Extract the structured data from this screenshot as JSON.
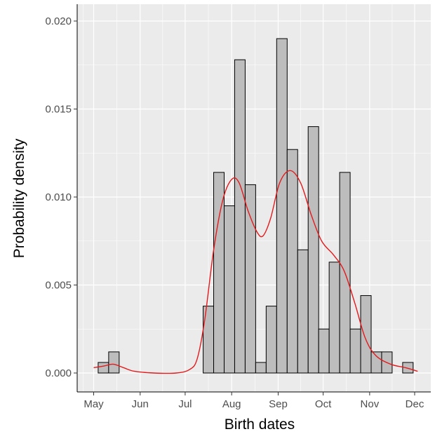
{
  "chart_data": {
    "type": "histogram",
    "xlabel": "Birth dates",
    "ylabel": "Probability density",
    "x_ticks": [
      "May",
      "Jun",
      "Jul",
      "Aug",
      "Sep",
      "Oct",
      "Nov",
      "Dec"
    ],
    "y_ticks": [
      "0.000",
      "0.005",
      "0.010",
      "0.015",
      "0.020"
    ],
    "ylim": [
      0,
      0.0205
    ],
    "grid": true,
    "bin_width_days": 7,
    "bins": [
      {
        "start": "2000-05-04",
        "density": 0.0006
      },
      {
        "start": "2000-05-11",
        "density": 0.0012
      },
      {
        "start": "2000-07-13",
        "density": 0.0038
      },
      {
        "start": "2000-07-20",
        "density": 0.0114
      },
      {
        "start": "2000-07-27",
        "density": 0.0095
      },
      {
        "start": "2000-08-03",
        "density": 0.0178
      },
      {
        "start": "2000-08-10",
        "density": 0.0107
      },
      {
        "start": "2000-08-17",
        "density": 0.0006
      },
      {
        "start": "2000-08-24",
        "density": 0.0038
      },
      {
        "start": "2000-08-31",
        "density": 0.019
      },
      {
        "start": "2000-09-07",
        "density": 0.0127
      },
      {
        "start": "2000-09-14",
        "density": 0.007
      },
      {
        "start": "2000-09-21",
        "density": 0.014
      },
      {
        "start": "2000-09-28",
        "density": 0.0025
      },
      {
        "start": "2000-10-05",
        "density": 0.0063
      },
      {
        "start": "2000-10-12",
        "density": 0.0114
      },
      {
        "start": "2000-10-19",
        "density": 0.0025
      },
      {
        "start": "2000-10-26",
        "density": 0.0044
      },
      {
        "start": "2000-11-02",
        "density": 0.0012
      },
      {
        "start": "2000-11-09",
        "density": 0.0012
      },
      {
        "start": "2000-11-23",
        "density": 0.0006
      }
    ],
    "density_curve": {
      "color": "#e41a1c",
      "points": [
        [
          "2000-05-01",
          0.0003
        ],
        [
          "2000-05-08",
          0.0004
        ],
        [
          "2000-05-14",
          0.0005
        ],
        [
          "2000-05-21",
          0.0003
        ],
        [
          "2000-05-28",
          0.0001
        ],
        [
          "2000-06-10",
          0.0
        ],
        [
          "2000-06-25",
          0.0
        ],
        [
          "2000-07-04",
          0.0002
        ],
        [
          "2000-07-09",
          0.0008
        ],
        [
          "2000-07-14",
          0.003
        ],
        [
          "2000-07-20",
          0.007
        ],
        [
          "2000-07-26",
          0.0098
        ],
        [
          "2000-08-01",
          0.011
        ],
        [
          "2000-08-06",
          0.0108
        ],
        [
          "2000-08-12",
          0.0092
        ],
        [
          "2000-08-18",
          0.008
        ],
        [
          "2000-08-22",
          0.0078
        ],
        [
          "2000-08-27",
          0.0088
        ],
        [
          "2000-09-02",
          0.0108
        ],
        [
          "2000-09-09",
          0.0115
        ],
        [
          "2000-09-16",
          0.0108
        ],
        [
          "2000-09-23",
          0.009
        ],
        [
          "2000-09-30",
          0.0075
        ],
        [
          "2000-10-08",
          0.0067
        ],
        [
          "2000-10-15",
          0.0058
        ],
        [
          "2000-10-22",
          0.004
        ],
        [
          "2000-10-29",
          0.002
        ],
        [
          "2000-11-05",
          0.001
        ],
        [
          "2000-11-15",
          0.0005
        ],
        [
          "2000-11-25",
          0.0003
        ],
        [
          "2000-12-03",
          0.0001
        ]
      ]
    },
    "colors": {
      "panel_background": "#ebebeb",
      "grid": "#ffffff",
      "bar_fill": "#bdbdbd",
      "bar_outline": "#000000"
    }
  }
}
